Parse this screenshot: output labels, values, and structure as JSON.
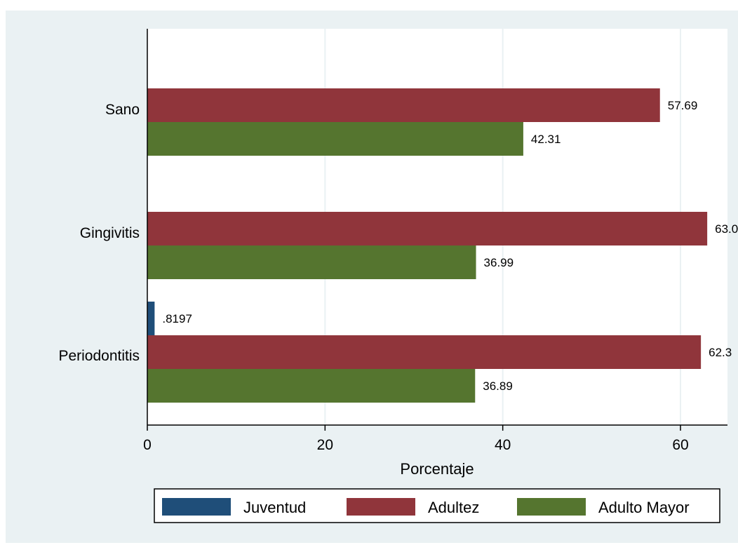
{
  "chart_data": {
    "type": "bar",
    "orientation": "horizontal",
    "categories": [
      "Sano",
      "Gingivitis",
      "Periodontitis"
    ],
    "series": [
      {
        "name": "Juventud",
        "color": "#1f4e79",
        "values": [
          null,
          null,
          0.8197
        ],
        "labels": [
          "",
          "",
          ".8197"
        ]
      },
      {
        "name": "Adultez",
        "color": "#90353b",
        "values": [
          57.69,
          63.01,
          62.3
        ],
        "labels": [
          "57.69",
          "63.0",
          "62.3"
        ]
      },
      {
        "name": "Adulto Mayor",
        "color": "#55752f",
        "values": [
          42.31,
          36.99,
          36.89
        ],
        "labels": [
          "42.31",
          "36.99",
          "36.89"
        ]
      }
    ],
    "xlabel": "Porcentaje",
    "ylabel": "",
    "x_ticks": [
      "0",
      "20",
      "40",
      "60"
    ],
    "x_tick_values": [
      0,
      20,
      40,
      60
    ],
    "xlim": [
      0,
      65
    ],
    "grid": true,
    "legend_position": "bottom"
  }
}
